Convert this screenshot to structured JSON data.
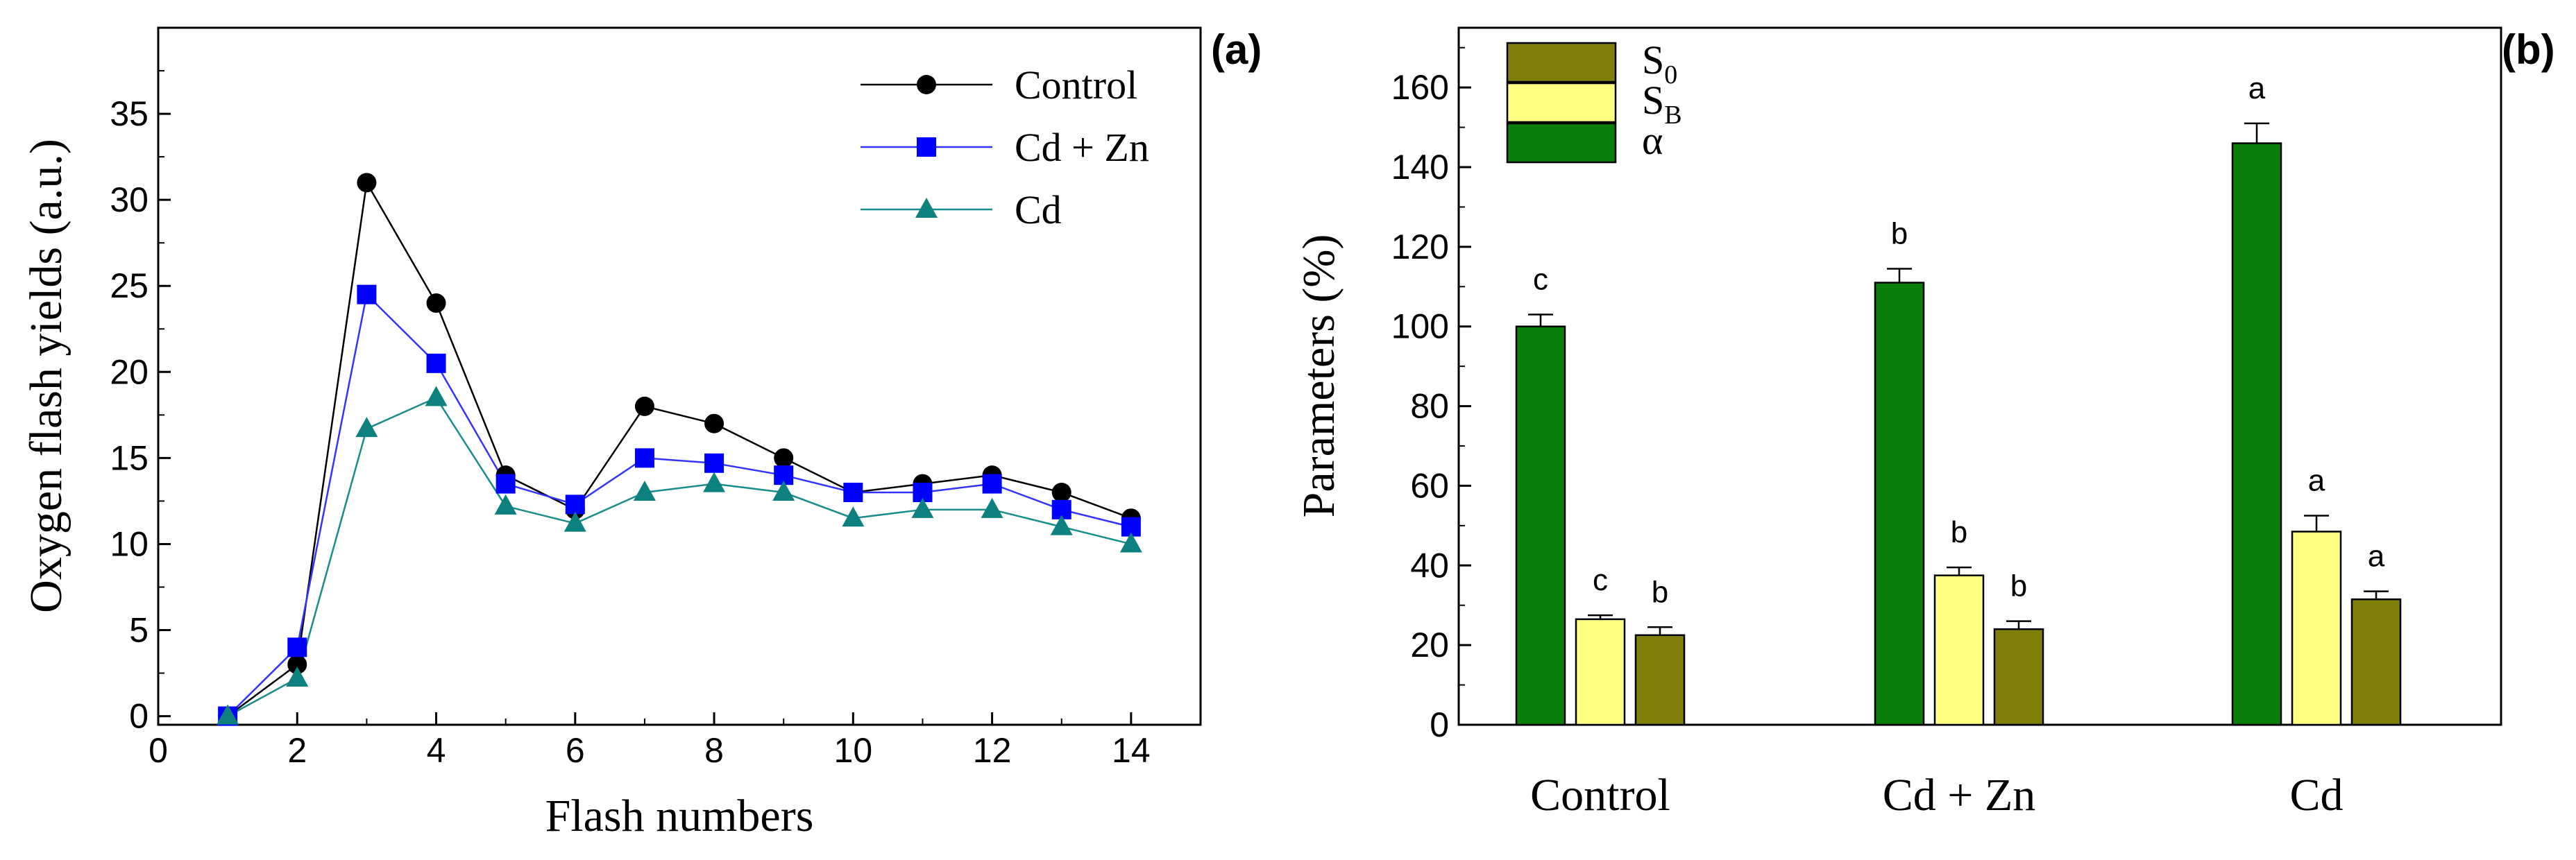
{
  "chart_data": [
    {
      "type": "line",
      "panel_label": "(a)",
      "xlabel": "Flash  numbers",
      "ylabel": "Oxygen  flash yields  (a.u.)",
      "xlim": [
        0,
        15
      ],
      "ylim": [
        -0.5,
        40
      ],
      "xticks": [
        0,
        2,
        4,
        6,
        8,
        10,
        12,
        14
      ],
      "yticks": [
        0,
        5,
        10,
        15,
        20,
        25,
        30,
        35
      ],
      "x": [
        1,
        2,
        3,
        4,
        5,
        6,
        7,
        8,
        9,
        10,
        11,
        12,
        13,
        14
      ],
      "legend_position": "top-right",
      "series": [
        {
          "name": "Control",
          "marker": "circle",
          "color": "#000000",
          "markerColor": "#000000",
          "values": [
            0,
            3,
            31,
            24,
            14,
            12,
            18,
            17,
            15,
            13,
            13.5,
            14,
            13,
            11.5
          ]
        },
        {
          "name": "Cd + Zn",
          "marker": "square",
          "color": "#3333ff",
          "markerColor": "#0000ff",
          "values": [
            0,
            4,
            24.5,
            20.5,
            13.5,
            12.3,
            15,
            14.7,
            14,
            13,
            13,
            13.5,
            12,
            11
          ]
        },
        {
          "name": "Cd",
          "marker": "triangle",
          "color": "#1a8c8c",
          "markerColor": "#0d8080",
          "values": [
            0,
            2.2,
            16.7,
            18.5,
            12.2,
            11.2,
            13,
            13.5,
            13,
            11.5,
            12,
            12,
            11,
            10
          ]
        }
      ]
    },
    {
      "type": "bar",
      "panel_label": "(b)",
      "xlabel": "",
      "ylabel": "Parameters (%)",
      "ylim": [
        0,
        175
      ],
      "yticks": [
        0,
        20,
        40,
        60,
        80,
        100,
        120,
        140,
        160
      ],
      "categories": [
        "Control",
        "Cd + Zn",
        "Cd"
      ],
      "legend_position": "top-left",
      "legend": [
        {
          "name": "S",
          "sub": "0",
          "color": "#7f7f0a"
        },
        {
          "name": "S",
          "sub": "B",
          "color": "#ffff80"
        },
        {
          "name": "α",
          "sub": "",
          "color": "#0a7f0a"
        }
      ],
      "series": [
        {
          "name": "α",
          "color": "#0a7f0a",
          "values": [
            100,
            111,
            146
          ],
          "errors": [
            3,
            3.5,
            5
          ],
          "labels": [
            "c",
            "b",
            "a"
          ]
        },
        {
          "name": "SB",
          "color": "#ffff80",
          "values": [
            26.5,
            37.5,
            48.5
          ],
          "errors": [
            1,
            2,
            4
          ],
          "labels": [
            "c",
            "b",
            "a"
          ]
        },
        {
          "name": "S0",
          "color": "#7f7f0a",
          "values": [
            22.5,
            24,
            31.5
          ],
          "errors": [
            2,
            2,
            2
          ],
          "labels": [
            "b",
            "b",
            "a"
          ]
        }
      ]
    }
  ]
}
